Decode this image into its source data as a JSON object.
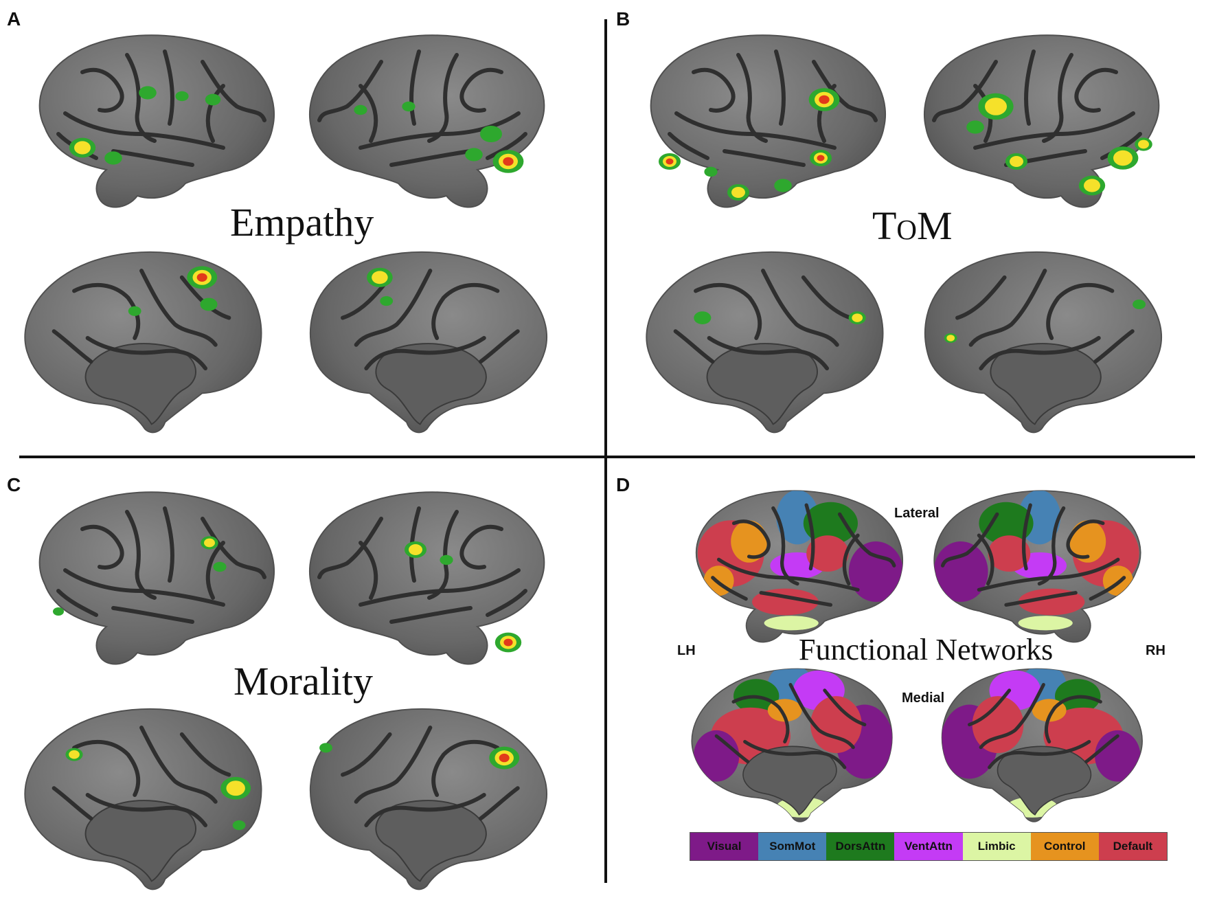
{
  "panels": {
    "a": {
      "letter": "A",
      "title": "Empathy"
    },
    "b": {
      "letter": "B",
      "title": "ToM"
    },
    "c": {
      "letter": "C",
      "title": "Morality"
    },
    "d": {
      "letter": "D",
      "title": "Functional Networks",
      "lateral_label": "Lateral",
      "medial_label": "Medial",
      "lh_label": "LH",
      "rh_label": "RH"
    }
  },
  "legend": [
    {
      "label": "Visual",
      "color": "#7e1a88"
    },
    {
      "label": "SomMot",
      "color": "#4682b4"
    },
    {
      "label": "DorsAttn",
      "color": "#1e7a1e"
    },
    {
      "label": "VentAttn",
      "color": "#c43bf5"
    },
    {
      "label": "Limbic",
      "color": "#dcf5a4"
    },
    {
      "label": "Control",
      "color": "#e6931f"
    },
    {
      "label": "Default",
      "color": "#cd3e4e"
    }
  ],
  "colors": {
    "cortex": "#6b6b6b",
    "border": "#2f2f2f",
    "activation_low": "#2ea82e",
    "activation_mid": "#f5e12a",
    "activation_high": "#e23a1a"
  }
}
